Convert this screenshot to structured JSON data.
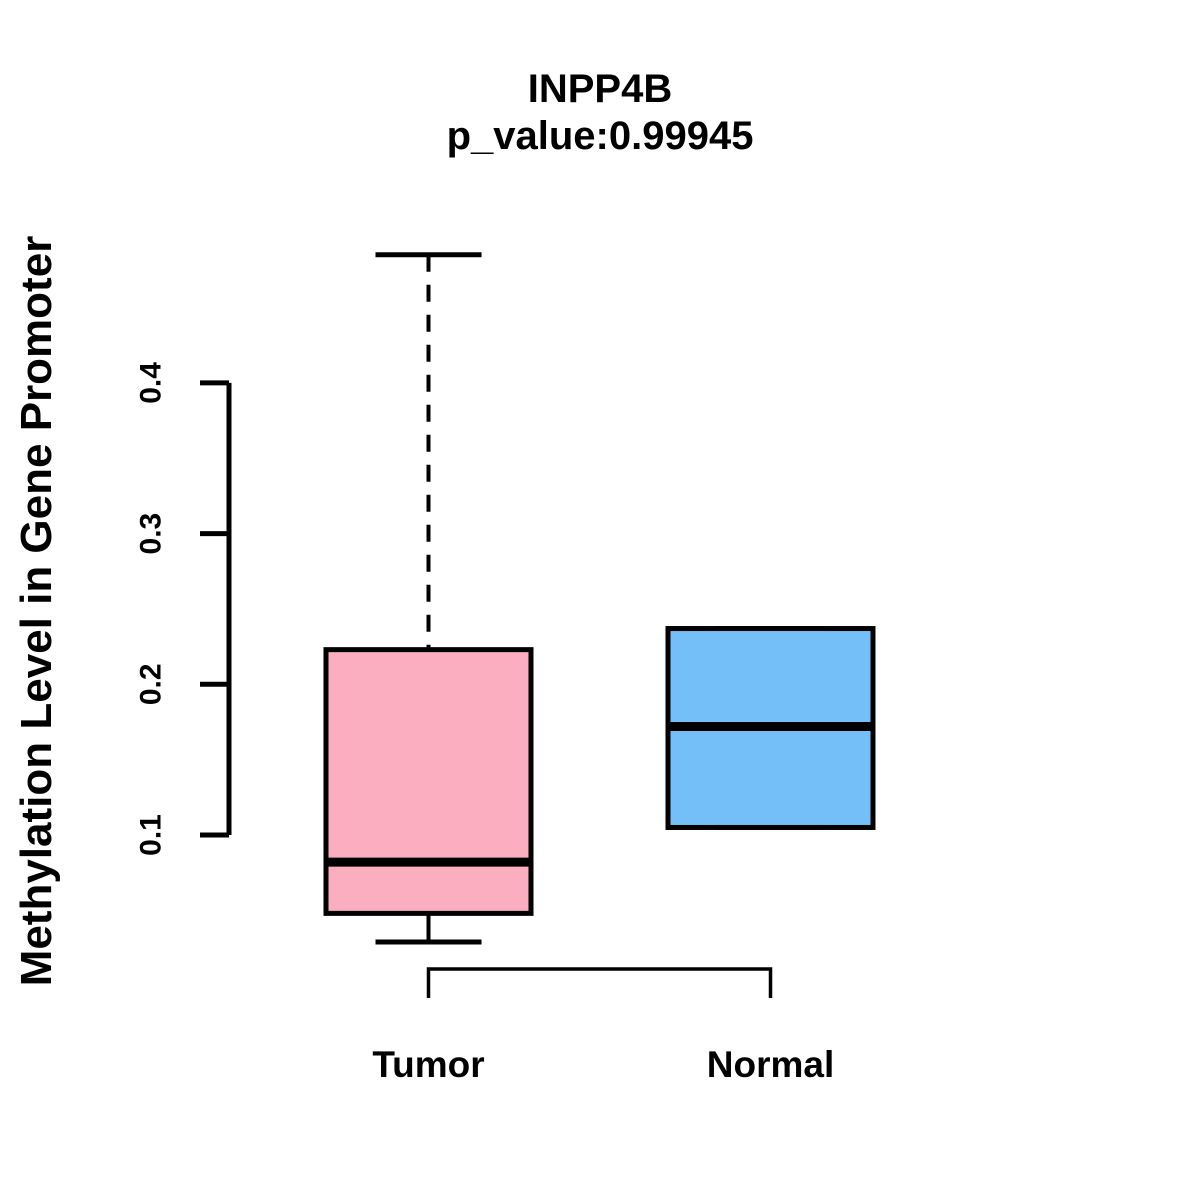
{
  "title": {
    "gene": "INPP4B",
    "pvalue_line": "p_value:0.99945"
  },
  "y_axis": {
    "label": "Methylation Level in Gene Promoter",
    "ticks": [
      0.1,
      0.2,
      0.3,
      0.4
    ],
    "tick_labels": [
      "0.1",
      "0.2",
      "0.3",
      "0.4"
    ]
  },
  "x_axis": {
    "categories": [
      "Tumor",
      "Normal"
    ]
  },
  "chart_data": {
    "type": "boxplot",
    "title": "INPP4B",
    "subtitle": "p_value:0.99945",
    "xlabel": "",
    "ylabel": "Methylation Level in Gene Promoter",
    "categories": [
      "Tumor",
      "Normal"
    ],
    "y_ticks": [
      0.1,
      0.2,
      0.3,
      0.4
    ],
    "ylim": [
      0.02,
      0.49
    ],
    "grid": false,
    "legend": "none",
    "series": [
      {
        "name": "Tumor",
        "min": 0.029,
        "q1": 0.048,
        "median": 0.082,
        "q3": 0.223,
        "max": 0.485,
        "whisker_style_upper": "dashed",
        "whisker_style_lower": "solid",
        "fill": "#FCAEC1"
      },
      {
        "name": "Normal",
        "min": 0.105,
        "q1": 0.105,
        "median": 0.172,
        "q3": 0.237,
        "max": 0.237,
        "whisker_style_upper": "none",
        "whisker_style_lower": "none",
        "fill": "#74BFF8"
      }
    ]
  },
  "colors": {
    "tumor_fill": "#FCAEC1",
    "normal_fill": "#74BFF8",
    "line": "#000000",
    "background": "#FFFFFF"
  }
}
